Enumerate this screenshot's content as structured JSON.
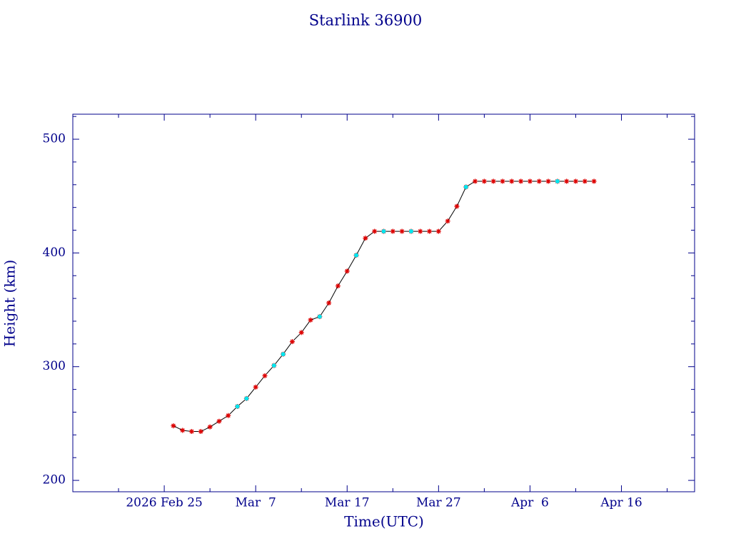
{
  "chart_data": {
    "type": "line",
    "title": "Starlink 36900",
    "x_label": "Time(UTC)",
    "y_label": "Height (km)",
    "xlim": [
      "2026-02-15",
      "2026-04-24"
    ],
    "xticks": [
      {
        "value": "2026-02-25",
        "label": "2026 Feb 25"
      },
      {
        "value": "2026-03-07",
        "label": "Mar  7"
      },
      {
        "value": "2026-03-17",
        "label": "Mar 17"
      },
      {
        "value": "2026-03-27",
        "label": "Mar 27"
      },
      {
        "value": "2026-04-06",
        "label": "Apr  6"
      },
      {
        "value": "2026-04-16",
        "label": "Apr 16"
      }
    ],
    "xminorticks": [
      "2026-02-20",
      "2026-03-02",
      "2026-03-12",
      "2026-03-22",
      "2026-04-01",
      "2026-04-11",
      "2026-04-21"
    ],
    "ylim": [
      190,
      522
    ],
    "yticks": [
      200,
      300,
      400,
      500
    ],
    "yminorticks": [
      220,
      240,
      260,
      280,
      320,
      340,
      360,
      380,
      420,
      440,
      460,
      480,
      520
    ],
    "axis_color": "#00008b",
    "line_color": "#000000",
    "series": [
      {
        "color": "#dd0000",
        "x": [
          "2026-02-26",
          "2026-02-27",
          "2026-02-28",
          "2026-03-01",
          "2026-03-02",
          "2026-03-03",
          "2026-03-04",
          "2026-03-05",
          "2026-03-06",
          "2026-03-07",
          "2026-03-08",
          "2026-03-09",
          "2026-03-10",
          "2026-03-11",
          "2026-03-12",
          "2026-03-13",
          "2026-03-14",
          "2026-03-15",
          "2026-03-16",
          "2026-03-17",
          "2026-03-18",
          "2026-03-19",
          "2026-03-20",
          "2026-03-21",
          "2026-03-22",
          "2026-03-23",
          "2026-03-24",
          "2026-03-25",
          "2026-03-26",
          "2026-03-27",
          "2026-03-28",
          "2026-03-29",
          "2026-03-30",
          "2026-03-31",
          "2026-04-01",
          "2026-04-02",
          "2026-04-03",
          "2026-04-04",
          "2026-04-05",
          "2026-04-06",
          "2026-04-07",
          "2026-04-08",
          "2026-04-09",
          "2026-04-10",
          "2026-04-11",
          "2026-04-12",
          "2026-04-13"
        ],
        "values": [
          248,
          244,
          243,
          243,
          247,
          252,
          257,
          265,
          272,
          282,
          292,
          301,
          311,
          322,
          330,
          341,
          344,
          356,
          371,
          384,
          398,
          413,
          419,
          419,
          419,
          419,
          419,
          419,
          419,
          419,
          428,
          441,
          458,
          463,
          463,
          463,
          463,
          463,
          463,
          463,
          463,
          463,
          463,
          463,
          463,
          463,
          463
        ]
      },
      {
        "color": "#00e5ee",
        "marker": "dot",
        "x": [
          "2026-03-05",
          "2026-03-06",
          "2026-03-09",
          "2026-03-10",
          "2026-03-14",
          "2026-03-18",
          "2026-03-21",
          "2026-03-24",
          "2026-03-30",
          "2026-04-09"
        ],
        "values": [
          265,
          272,
          301,
          311,
          344,
          398,
          419,
          419,
          458,
          463
        ]
      }
    ]
  }
}
